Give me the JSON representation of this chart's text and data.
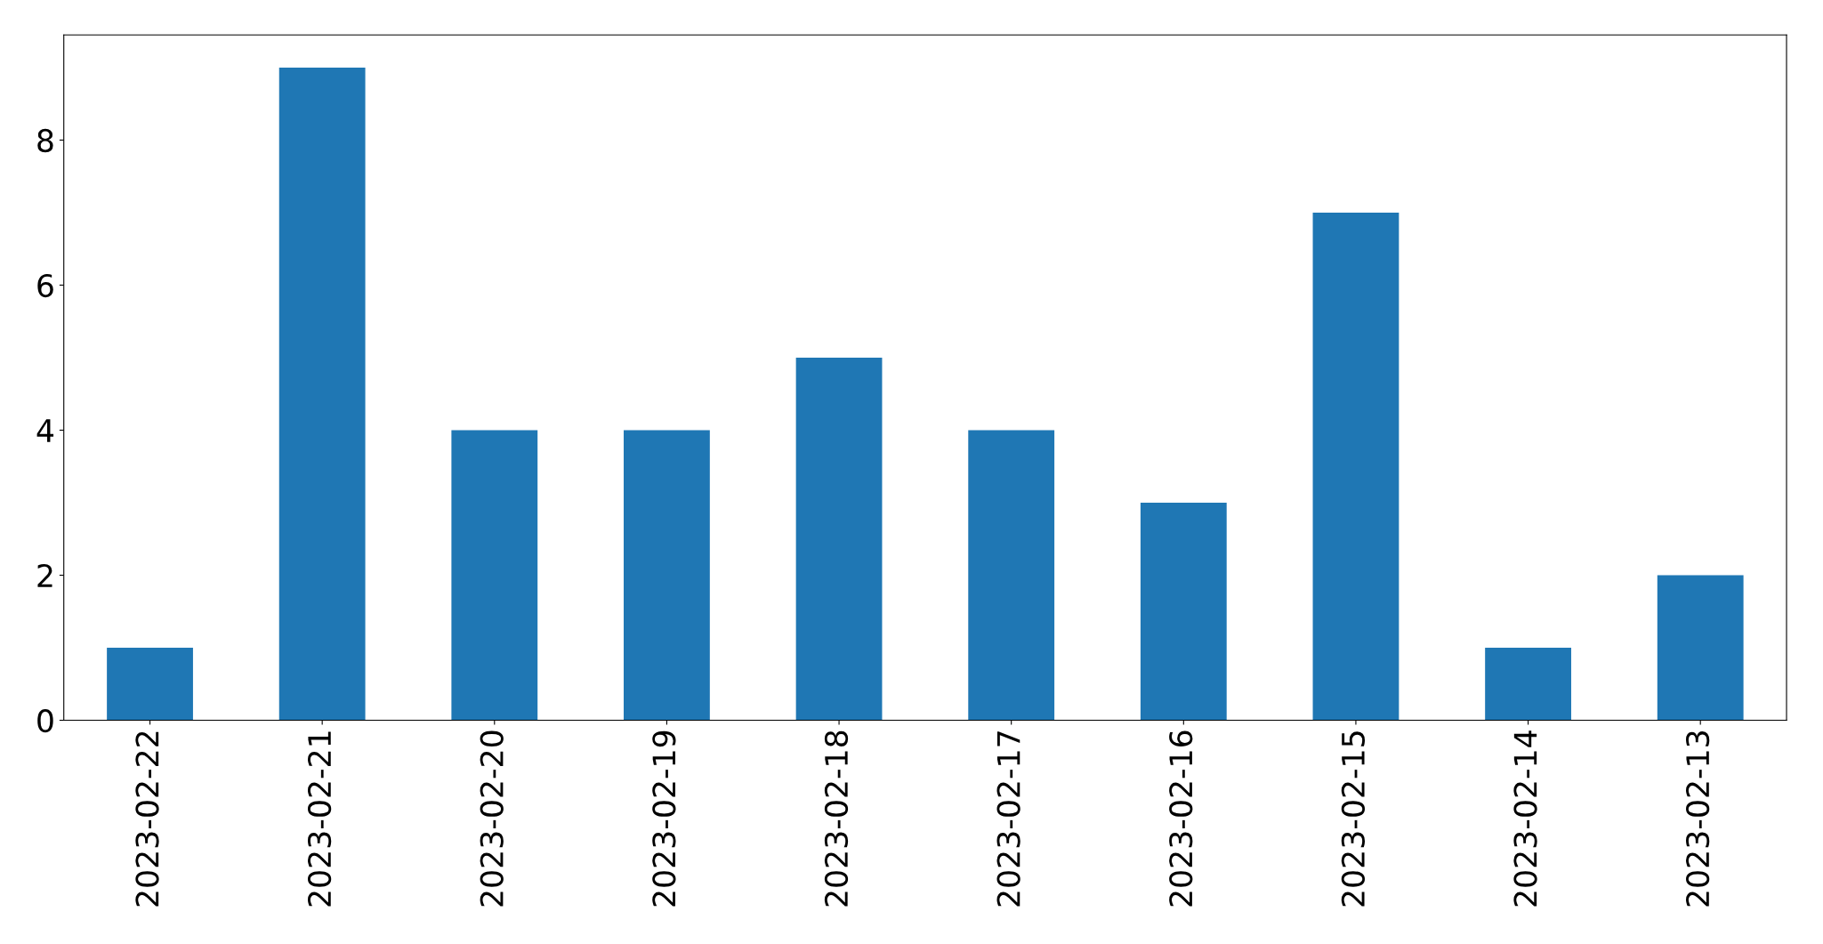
{
  "chart_data": {
    "type": "bar",
    "categories": [
      "2023-02-22",
      "2023-02-21",
      "2023-02-20",
      "2023-02-19",
      "2023-02-18",
      "2023-02-17",
      "2023-02-16",
      "2023-02-15",
      "2023-02-14",
      "2023-02-13"
    ],
    "values": [
      1,
      9,
      4,
      4,
      5,
      4,
      3,
      7,
      1,
      2
    ],
    "color": "#1f77b4",
    "ylim": [
      0,
      9.45
    ],
    "yticks": [
      0,
      2,
      4,
      6,
      8
    ],
    "grid": false,
    "legend": false
  }
}
